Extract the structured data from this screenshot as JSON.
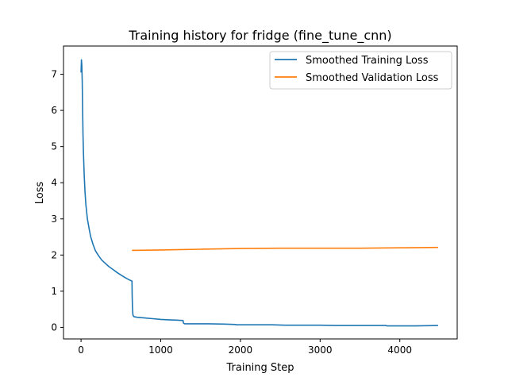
{
  "chart_data": {
    "type": "line",
    "title": "Training history for fridge (fine_tune_cnn)",
    "xlabel": "Training Step",
    "ylabel": "Loss",
    "xlim": [
      -220,
      4720
    ],
    "ylim": [
      -0.32,
      7.78
    ],
    "xticks": [
      0,
      1000,
      2000,
      3000,
      4000
    ],
    "yticks": [
      0,
      1,
      2,
      3,
      4,
      5,
      6,
      7
    ],
    "grid": false,
    "legend_position": "top-right",
    "series": [
      {
        "name": "Smoothed Training Loss",
        "color": "#1f77b4",
        "x": [
          0,
          5,
          10,
          15,
          20,
          25,
          30,
          40,
          50,
          60,
          70,
          80,
          100,
          120,
          150,
          180,
          220,
          260,
          300,
          350,
          400,
          450,
          500,
          550,
          600,
          640,
          642,
          645,
          650,
          660,
          700,
          800,
          900,
          1000,
          1100,
          1200,
          1280,
          1285,
          1290,
          1300,
          1400,
          1600,
          1800,
          1940,
          1945,
          1950,
          2000,
          2200,
          2400,
          2560,
          2565,
          2570,
          2600,
          2800,
          3000,
          3190,
          3195,
          3200,
          3400,
          3600,
          3830,
          3835,
          3840,
          4000,
          4200,
          4480
        ],
        "y": [
          7.05,
          7.4,
          7.25,
          6.8,
          6.0,
          5.3,
          4.85,
          4.2,
          3.75,
          3.42,
          3.2,
          3.0,
          2.75,
          2.52,
          2.3,
          2.12,
          1.98,
          1.86,
          1.78,
          1.68,
          1.6,
          1.52,
          1.45,
          1.38,
          1.32,
          1.28,
          0.9,
          0.55,
          0.35,
          0.3,
          0.28,
          0.26,
          0.24,
          0.22,
          0.21,
          0.2,
          0.19,
          0.12,
          0.11,
          0.1,
          0.1,
          0.1,
          0.09,
          0.08,
          0.07,
          0.07,
          0.07,
          0.07,
          0.07,
          0.06,
          0.06,
          0.06,
          0.06,
          0.06,
          0.06,
          0.05,
          0.05,
          0.05,
          0.05,
          0.05,
          0.05,
          0.04,
          0.04,
          0.04,
          0.04,
          0.05
        ]
      },
      {
        "name": "Smoothed Validation Loss",
        "color": "#ff7f0e",
        "x": [
          640,
          1000,
          1500,
          2000,
          2500,
          3000,
          3500,
          4000,
          4480
        ],
        "y": [
          2.13,
          2.14,
          2.16,
          2.18,
          2.19,
          2.19,
          2.19,
          2.2,
          2.21
        ]
      }
    ]
  }
}
